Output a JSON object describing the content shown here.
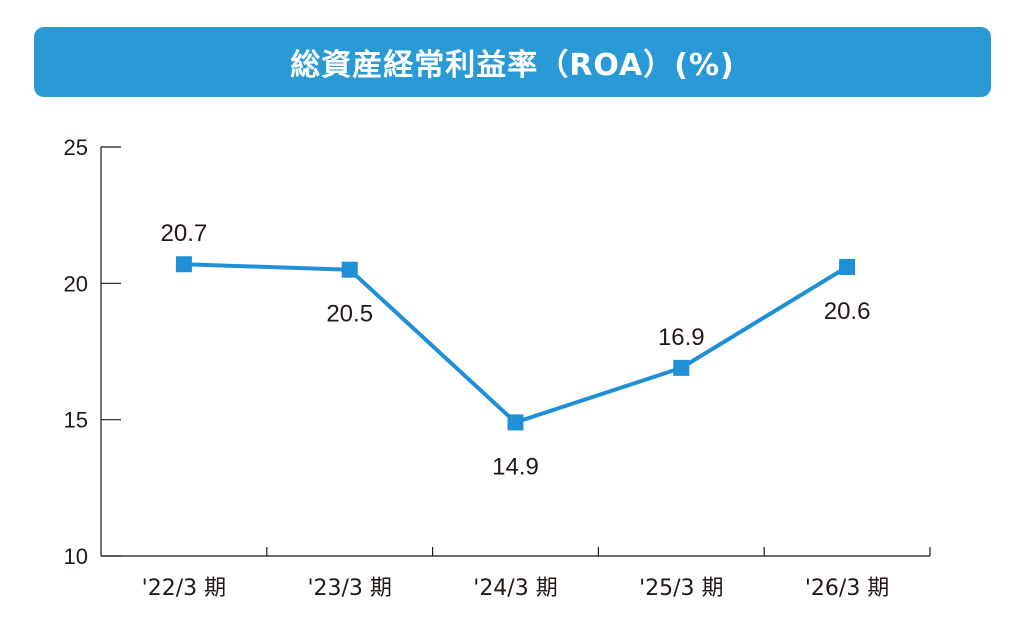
{
  "colors": {
    "accent": "#2a9ad6",
    "series": "#1f8fd6",
    "axis": "#231815",
    "text": "#231815"
  },
  "chart_data": {
    "type": "line",
    "title": "総資産経常利益率（ROA）(%)",
    "xlabel": "",
    "ylabel": "",
    "categories": [
      "'22/3 期",
      "'23/3 期",
      "'24/3 期",
      "'25/3 期",
      "'26/3 期"
    ],
    "series": [
      {
        "values": [
          20.7,
          20.5,
          14.9,
          16.9,
          20.6
        ]
      }
    ],
    "data_labels": [
      "20.7",
      "20.5",
      "14.9",
      "16.9",
      "20.6"
    ],
    "ylim": [
      10,
      25
    ],
    "yticks": [
      10,
      15,
      20,
      25
    ],
    "ytick_labels": [
      "10",
      "15",
      "20",
      "25"
    ],
    "grid": false,
    "marker": "square"
  }
}
